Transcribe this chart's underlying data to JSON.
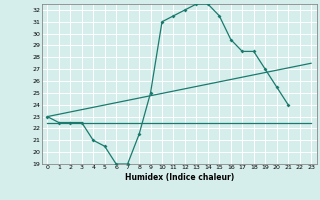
{
  "title": "",
  "xlabel": "Humidex (Indice chaleur)",
  "background_color": "#d5eeeb",
  "grid_color": "#ffffff",
  "line_color": "#1a7a6e",
  "xlim": [
    -0.5,
    23.5
  ],
  "ylim": [
    19,
    32.5
  ],
  "yticks": [
    19,
    20,
    21,
    22,
    23,
    24,
    25,
    26,
    27,
    28,
    29,
    30,
    31,
    32
  ],
  "xticks": [
    0,
    1,
    2,
    3,
    4,
    5,
    6,
    7,
    8,
    9,
    10,
    11,
    12,
    13,
    14,
    15,
    16,
    17,
    18,
    19,
    20,
    21,
    22,
    23
  ],
  "line1_x": [
    0,
    1,
    2,
    3,
    4,
    5,
    6,
    7,
    8,
    9,
    10,
    11,
    12,
    13,
    14,
    15,
    16,
    17,
    18,
    19,
    20,
    21
  ],
  "line1_y": [
    23.0,
    22.5,
    22.5,
    22.5,
    21.0,
    20.5,
    19.0,
    19.0,
    21.5,
    25.0,
    31.0,
    31.5,
    32.0,
    32.5,
    32.5,
    31.5,
    29.5,
    28.5,
    28.5,
    27.0,
    25.5,
    24.0
  ],
  "line2_x": [
    0,
    18,
    23
  ],
  "line2_y": [
    22.5,
    22.5,
    22.5
  ],
  "line3_x": [
    0,
    23
  ],
  "line3_y": [
    23.0,
    27.5
  ]
}
